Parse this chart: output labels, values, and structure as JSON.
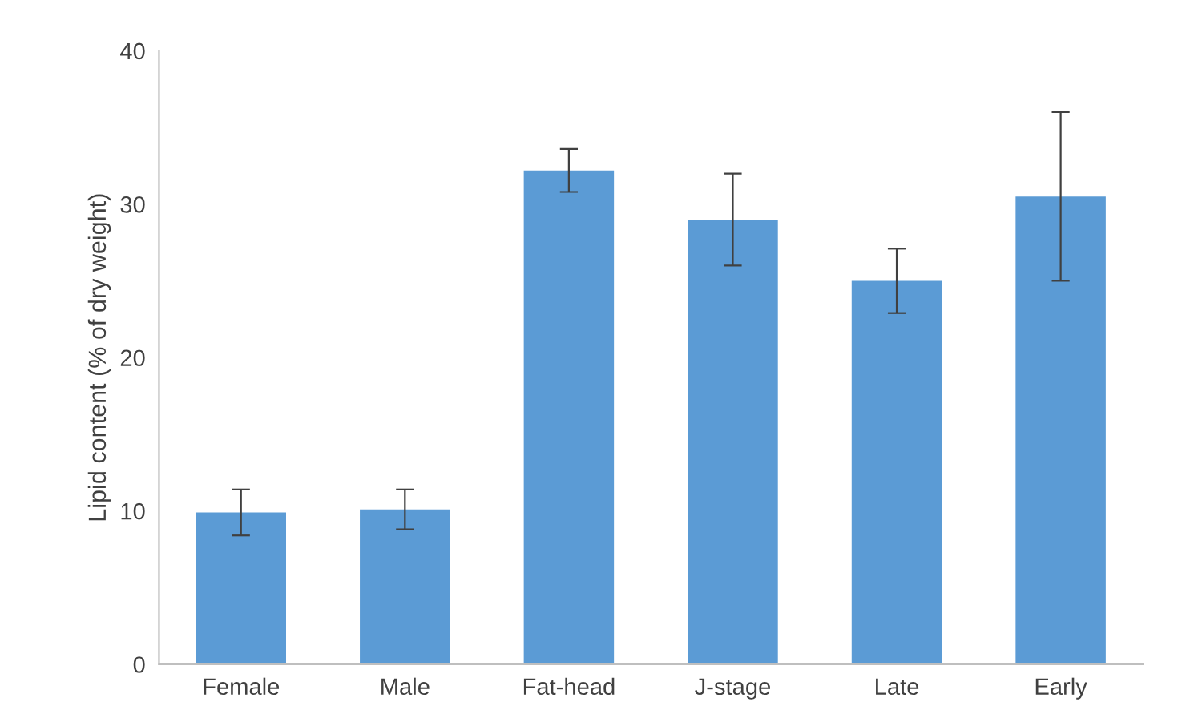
{
  "chart_data": {
    "type": "bar",
    "ylabel": "Lipid content (% of dry weight)",
    "categories": [
      "Female",
      "Male",
      "Fat-head",
      "J-stage",
      "Late",
      "Early"
    ],
    "values": [
      9.9,
      10.1,
      32.2,
      29.0,
      25.0,
      30.5
    ],
    "errors": [
      1.5,
      1.3,
      1.4,
      3.0,
      2.1,
      5.5
    ],
    "color": "#5b9bd5",
    "ylim": [
      0,
      40
    ],
    "yticks": [
      0,
      10,
      20,
      30,
      40
    ],
    "grid": false,
    "legend": false
  }
}
